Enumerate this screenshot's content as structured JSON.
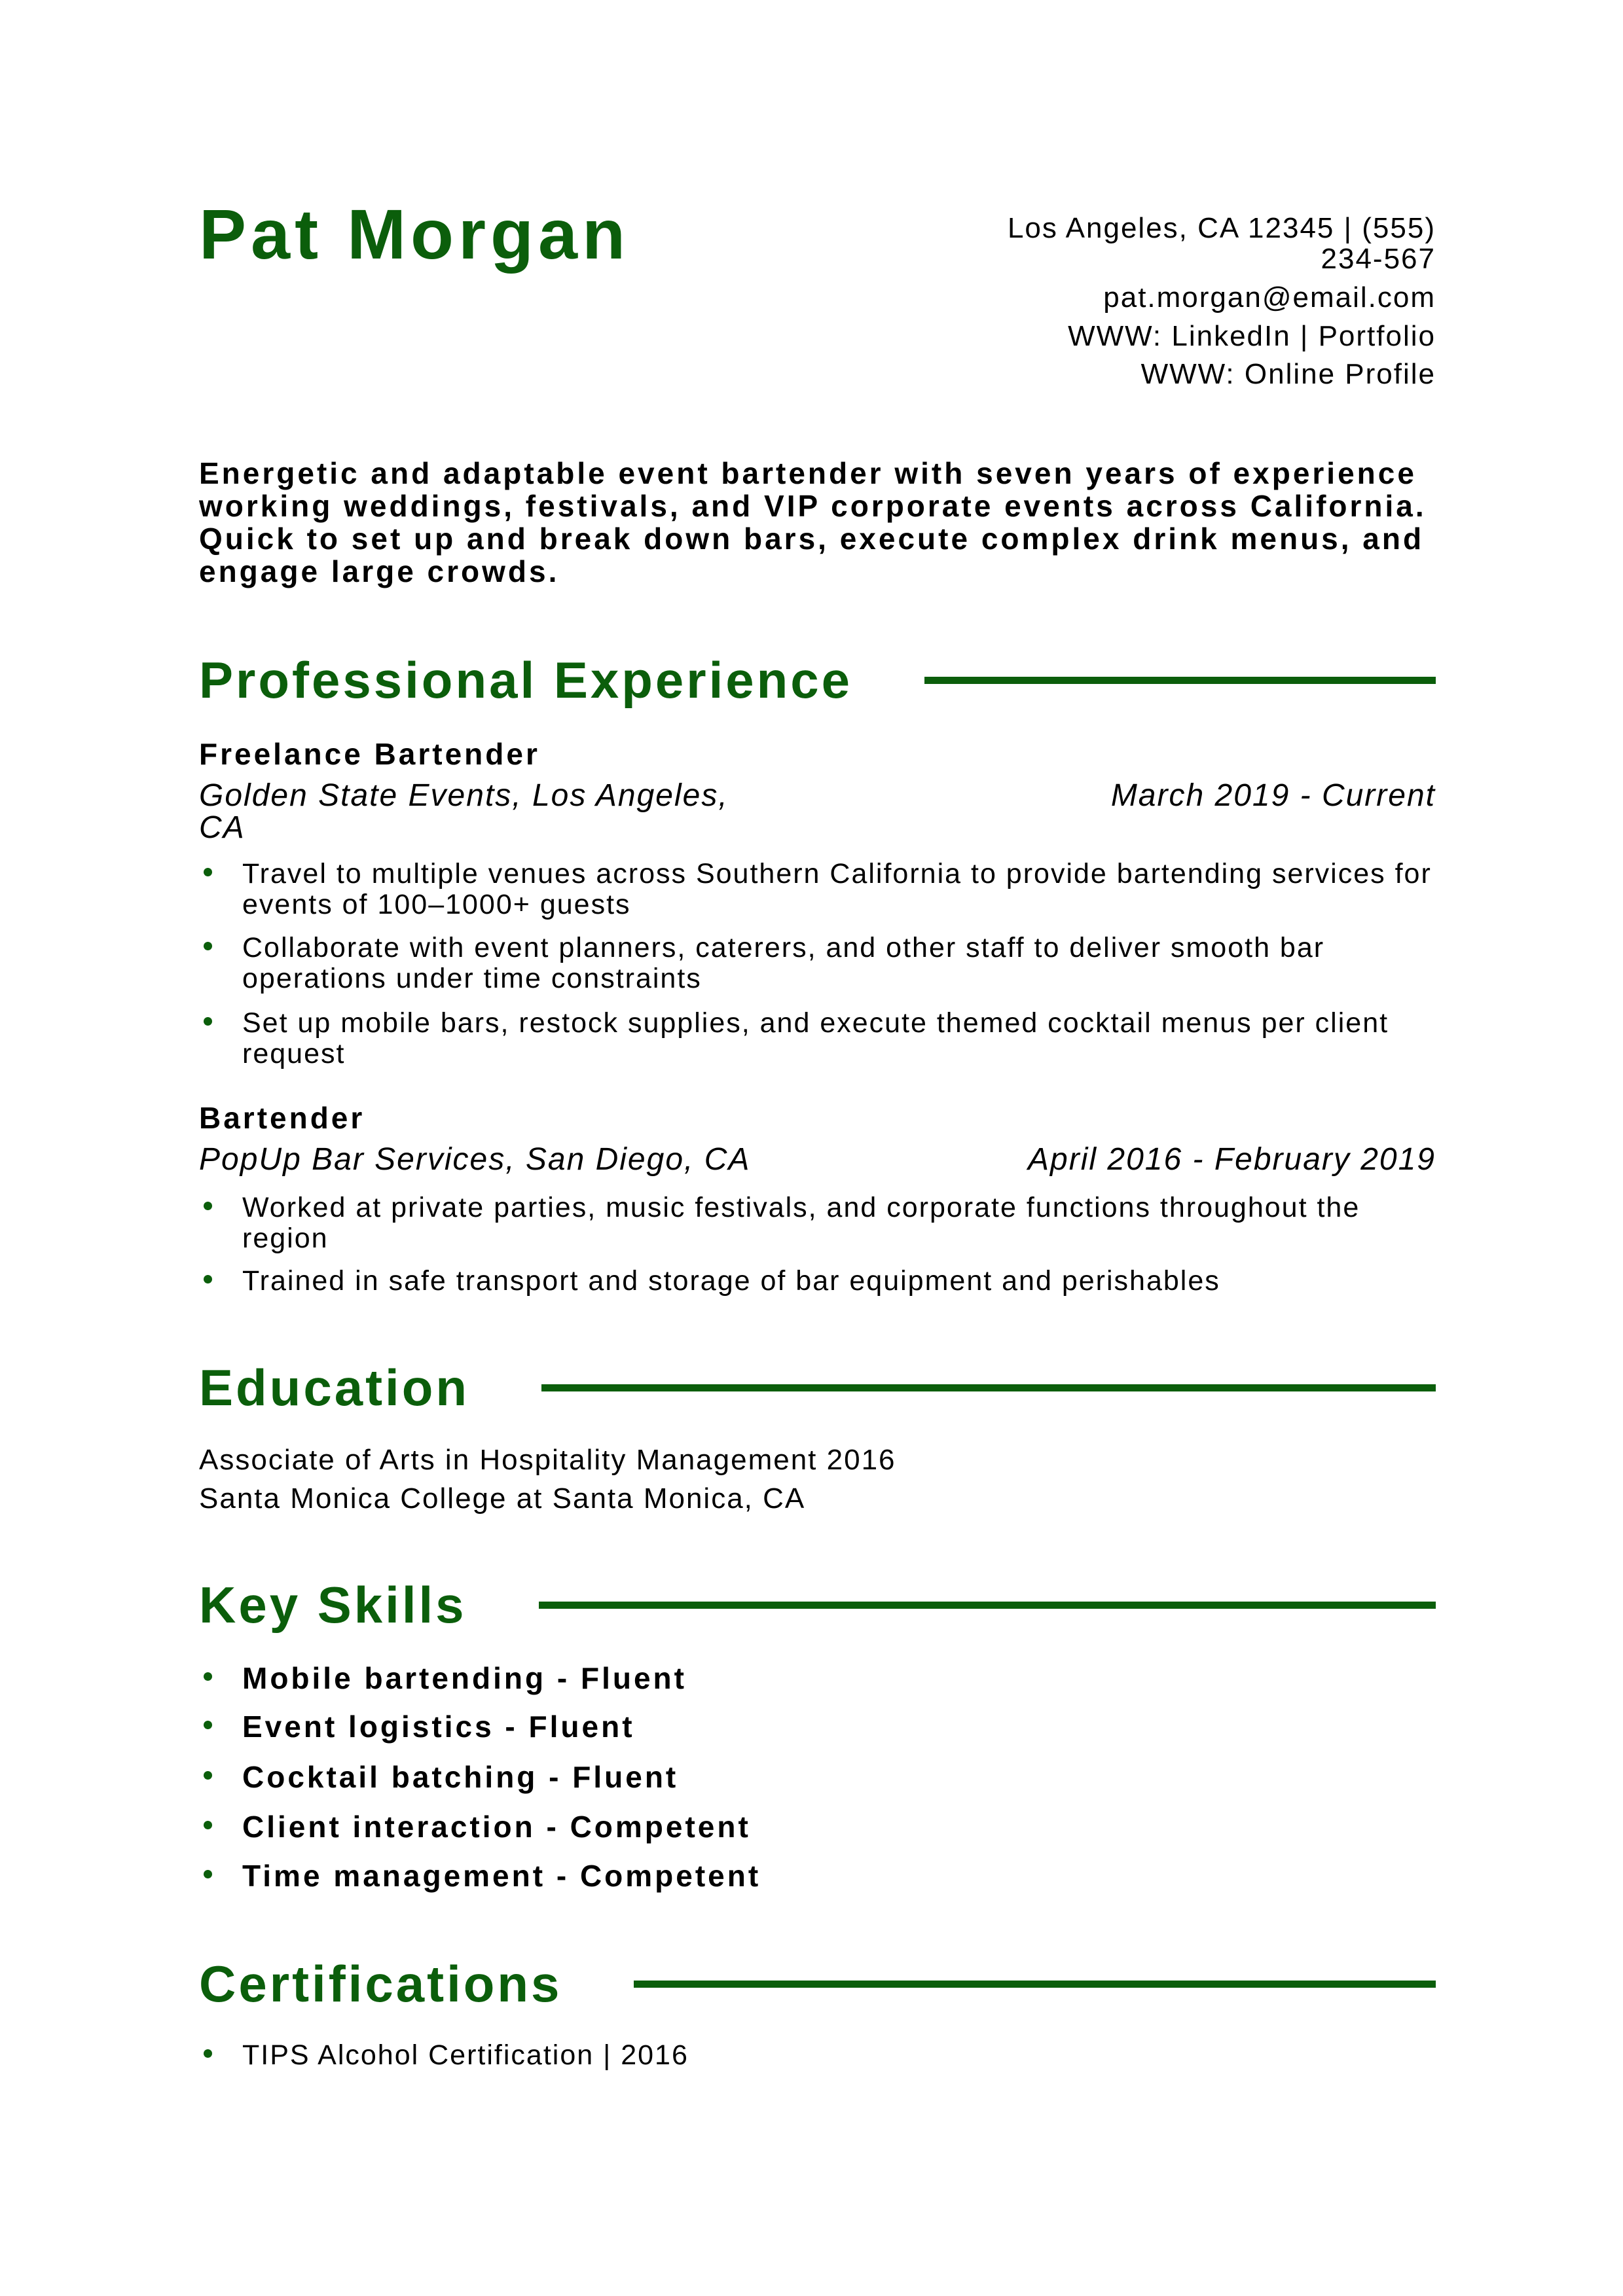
{
  "header": {
    "name": "Pat Morgan",
    "contact": {
      "location_phone": "Los Angeles, CA 12345 | (555) 234-567",
      "email": "pat.morgan@email.com",
      "links": "WWW: LinkedIn | Portfolio",
      "profile": "WWW: Online Profile"
    }
  },
  "summary": "Energetic and adaptable event bartender with seven years of experience working weddings, festivals, and VIP corporate events across California. Quick to set up and break down bars, execute complex drink menus, and engage large crowds.",
  "experience": {
    "heading": "Professional Experience",
    "jobs": [
      {
        "title": "Freelance Bartender",
        "company": "Golden State Events, Los Angeles, CA",
        "dates": "March 2019 - Current",
        "bullets": [
          "Travel to multiple venues across Southern California to provide bartending services for events of 100–1000+ guests",
          "Collaborate with event planners, caterers, and other staff to deliver smooth bar operations under time constraints",
          "Set up mobile bars, restock supplies, and execute themed cocktail menus per client request"
        ]
      },
      {
        "title": "Bartender",
        "company": "PopUp Bar Services, San Diego, CA",
        "dates": "April 2016 - February 2019",
        "bullets": [
          "Worked at private parties, music festivals, and corporate functions throughout the region",
          "Trained in safe transport and storage of bar equipment and perishables"
        ]
      }
    ]
  },
  "education": {
    "heading": "Education",
    "degree": "Associate of Arts in Hospitality Management 2016",
    "school": "Santa Monica College at Santa Monica, CA"
  },
  "skills": {
    "heading": "Key Skills",
    "items": [
      "Mobile bartending - Fluent",
      "Event logistics - Fluent",
      "Cocktail batching - Fluent",
      "Client interaction - Competent",
      "Time management - Competent"
    ]
  },
  "certifications": {
    "heading": "Certifications",
    "items": [
      "TIPS Alcohol Certification | 2016"
    ]
  },
  "colors": {
    "accent": "#0b5e0b",
    "text": "#000000"
  }
}
